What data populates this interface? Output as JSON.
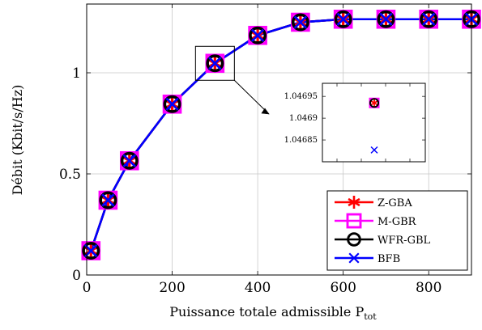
{
  "chart_data": {
    "type": "line",
    "xlabel": "Puissance totale admissible P",
    "xlabel_sub": "tot",
    "ylabel": "Débit (Kbit/s/Hz)",
    "xlim": [
      0,
      900
    ],
    "ylim": [
      0,
      1.34
    ],
    "grid": true,
    "legend_position": "bottom-right",
    "x_ticks": [
      0,
      200,
      400,
      600,
      800
    ],
    "x_tick_labels": [
      "0",
      "200",
      "400",
      "600",
      "800"
    ],
    "y_ticks": [
      0,
      0.5,
      1
    ],
    "y_tick_labels": [
      "0",
      "0.5",
      "1"
    ],
    "x": [
      10,
      50,
      100,
      200,
      300,
      400,
      500,
      600,
      700,
      800,
      900
    ],
    "series": [
      {
        "name": "Z-GBA",
        "color": "#ff0000",
        "marker": "asterisk",
        "values": [
          0.12,
          0.37,
          0.565,
          0.845,
          1.0469,
          1.185,
          1.25,
          1.265,
          1.265,
          1.265,
          1.265
        ]
      },
      {
        "name": "M-GBR",
        "color": "#ff00ff",
        "marker": "square",
        "values": [
          0.12,
          0.37,
          0.565,
          0.845,
          1.0469,
          1.185,
          1.25,
          1.265,
          1.265,
          1.265,
          1.265
        ]
      },
      {
        "name": "WFR-GBL",
        "color": "#000000",
        "marker": "circle",
        "values": [
          0.12,
          0.37,
          0.565,
          0.845,
          1.0469,
          1.185,
          1.25,
          1.265,
          1.265,
          1.265,
          1.265
        ]
      },
      {
        "name": "BFB",
        "color": "#0000ff",
        "marker": "cross",
        "values": [
          0.12,
          0.37,
          0.565,
          0.845,
          1.04683,
          1.185,
          1.25,
          1.265,
          1.265,
          1.265,
          1.265
        ]
      }
    ],
    "inset": {
      "x_value": 300,
      "ylim": [
        1.0468,
        1.04698
      ],
      "y_ticks": [
        1.04685,
        1.0469,
        1.04695
      ],
      "y_tick_labels": [
        "1.04685",
        "1.0469",
        "1.04695"
      ],
      "points": [
        {
          "series": "Z-GBA",
          "y": 1.046935
        },
        {
          "series": "M-GBR",
          "y": 1.046935
        },
        {
          "series": "WFR-GBL",
          "y": 1.046935
        },
        {
          "series": "BFB",
          "y": 1.046827
        }
      ]
    }
  }
}
